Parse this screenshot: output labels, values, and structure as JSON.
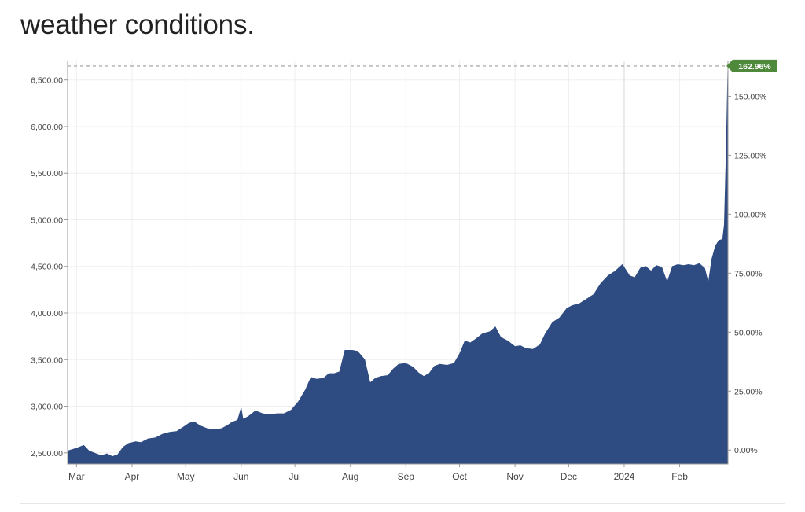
{
  "heading": "weather conditions.",
  "chart_data": {
    "type": "area",
    "title": "",
    "xlabel": "",
    "ylabel": "",
    "ylim": [
      2380,
      6700
    ],
    "y_ticks": [
      2500,
      3000,
      3500,
      4000,
      4500,
      5000,
      5500,
      6000,
      6500
    ],
    "y_tick_labels": [
      "2,500.00",
      "3,000.00",
      "3,500.00",
      "4,000.00",
      "4,500.00",
      "5,000.00",
      "5,500.00",
      "6,000.00",
      "6,500.00"
    ],
    "pct_ticks": [
      0,
      25,
      50,
      75,
      100,
      125,
      150
    ],
    "pct_tick_labels": [
      "0.00%",
      "25.00%",
      "50.00%",
      "75.00%",
      "100.00%",
      "125.00%",
      "150.00%"
    ],
    "pct_base": 2530,
    "last_value_label": "162.96%",
    "x_months": [
      {
        "label": "Mar",
        "date": "2023-03-01"
      },
      {
        "label": "Apr",
        "date": "2023-04-01"
      },
      {
        "label": "May",
        "date": "2023-05-01"
      },
      {
        "label": "Jun",
        "date": "2023-06-01"
      },
      {
        "label": "Jul",
        "date": "2023-07-01"
      },
      {
        "label": "Aug",
        "date": "2023-08-01"
      },
      {
        "label": "Sep",
        "date": "2023-09-01"
      },
      {
        "label": "Oct",
        "date": "2023-10-01"
      },
      {
        "label": "Nov",
        "date": "2023-11-01"
      },
      {
        "label": "Dec",
        "date": "2023-12-01"
      },
      {
        "label": "2024",
        "date": "2024-01-01"
      },
      {
        "label": "Feb",
        "date": "2024-02-01"
      }
    ],
    "xlim": [
      "2023-02-24",
      "2024-02-28"
    ],
    "series": [
      {
        "color": "#2e4b82",
        "points": [
          [
            "2023-02-24",
            2520
          ],
          [
            "2023-03-01",
            2550
          ],
          [
            "2023-03-05",
            2580
          ],
          [
            "2023-03-08",
            2520
          ],
          [
            "2023-03-12",
            2490
          ],
          [
            "2023-03-15",
            2470
          ],
          [
            "2023-03-18",
            2490
          ],
          [
            "2023-03-21",
            2460
          ],
          [
            "2023-03-24",
            2480
          ],
          [
            "2023-03-27",
            2560
          ],
          [
            "2023-03-30",
            2600
          ],
          [
            "2023-04-03",
            2620
          ],
          [
            "2023-04-06",
            2610
          ],
          [
            "2023-04-10",
            2650
          ],
          [
            "2023-04-14",
            2660
          ],
          [
            "2023-04-18",
            2700
          ],
          [
            "2023-04-22",
            2720
          ],
          [
            "2023-04-26",
            2730
          ],
          [
            "2023-04-30",
            2780
          ],
          [
            "2023-05-03",
            2820
          ],
          [
            "2023-05-06",
            2830
          ],
          [
            "2023-05-09",
            2790
          ],
          [
            "2023-05-13",
            2760
          ],
          [
            "2023-05-17",
            2750
          ],
          [
            "2023-05-21",
            2760
          ],
          [
            "2023-05-24",
            2790
          ],
          [
            "2023-05-27",
            2830
          ],
          [
            "2023-05-30",
            2850
          ],
          [
            "2023-06-01",
            2980
          ],
          [
            "2023-06-02",
            2860
          ],
          [
            "2023-06-05",
            2890
          ],
          [
            "2023-06-09",
            2950
          ],
          [
            "2023-06-13",
            2920
          ],
          [
            "2023-06-17",
            2910
          ],
          [
            "2023-06-21",
            2920
          ],
          [
            "2023-06-25",
            2920
          ],
          [
            "2023-06-29",
            2960
          ],
          [
            "2023-07-03",
            3050
          ],
          [
            "2023-07-07",
            3180
          ],
          [
            "2023-07-10",
            3310
          ],
          [
            "2023-07-13",
            3290
          ],
          [
            "2023-07-17",
            3300
          ],
          [
            "2023-07-20",
            3350
          ],
          [
            "2023-07-23",
            3350
          ],
          [
            "2023-07-26",
            3370
          ],
          [
            "2023-07-29",
            3600
          ],
          [
            "2023-08-02",
            3600
          ],
          [
            "2023-08-05",
            3590
          ],
          [
            "2023-08-09",
            3500
          ],
          [
            "2023-08-12",
            3250
          ],
          [
            "2023-08-15",
            3300
          ],
          [
            "2023-08-18",
            3320
          ],
          [
            "2023-08-22",
            3330
          ],
          [
            "2023-08-25",
            3400
          ],
          [
            "2023-08-28",
            3450
          ],
          [
            "2023-09-01",
            3460
          ],
          [
            "2023-09-05",
            3420
          ],
          [
            "2023-09-08",
            3360
          ],
          [
            "2023-09-11",
            3320
          ],
          [
            "2023-09-14",
            3350
          ],
          [
            "2023-09-17",
            3430
          ],
          [
            "2023-09-20",
            3450
          ],
          [
            "2023-09-24",
            3440
          ],
          [
            "2023-09-28",
            3460
          ],
          [
            "2023-10-01",
            3560
          ],
          [
            "2023-10-04",
            3700
          ],
          [
            "2023-10-07",
            3680
          ],
          [
            "2023-10-10",
            3720
          ],
          [
            "2023-10-14",
            3780
          ],
          [
            "2023-10-18",
            3800
          ],
          [
            "2023-10-21",
            3850
          ],
          [
            "2023-10-24",
            3740
          ],
          [
            "2023-10-28",
            3700
          ],
          [
            "2023-11-01",
            3640
          ],
          [
            "2023-11-04",
            3650
          ],
          [
            "2023-11-07",
            3620
          ],
          [
            "2023-11-11",
            3610
          ],
          [
            "2023-11-15",
            3660
          ],
          [
            "2023-11-18",
            3780
          ],
          [
            "2023-11-22",
            3900
          ],
          [
            "2023-11-26",
            3950
          ],
          [
            "2023-11-30",
            4050
          ],
          [
            "2023-12-03",
            4080
          ],
          [
            "2023-12-07",
            4100
          ],
          [
            "2023-12-11",
            4150
          ],
          [
            "2023-12-15",
            4200
          ],
          [
            "2023-12-19",
            4320
          ],
          [
            "2023-12-23",
            4400
          ],
          [
            "2023-12-27",
            4450
          ],
          [
            "2023-12-31",
            4520
          ],
          [
            "2024-01-04",
            4400
          ],
          [
            "2024-01-07",
            4380
          ],
          [
            "2024-01-10",
            4480
          ],
          [
            "2024-01-13",
            4500
          ],
          [
            "2024-01-16",
            4450
          ],
          [
            "2024-01-19",
            4510
          ],
          [
            "2024-01-22",
            4490
          ],
          [
            "2024-01-25",
            4330
          ],
          [
            "2024-01-28",
            4500
          ],
          [
            "2024-01-31",
            4520
          ],
          [
            "2024-02-03",
            4510
          ],
          [
            "2024-02-06",
            4520
          ],
          [
            "2024-02-09",
            4510
          ],
          [
            "2024-02-12",
            4530
          ],
          [
            "2024-02-15",
            4480
          ],
          [
            "2024-02-17",
            4320
          ],
          [
            "2024-02-19",
            4580
          ],
          [
            "2024-02-21",
            4720
          ],
          [
            "2024-02-23",
            4780
          ],
          [
            "2024-02-25",
            4790
          ],
          [
            "2024-02-26",
            4950
          ],
          [
            "2024-02-27",
            5700
          ],
          [
            "2024-02-28",
            6650
          ]
        ]
      }
    ]
  }
}
